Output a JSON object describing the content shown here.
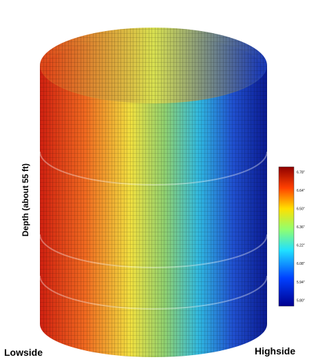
{
  "labels": {
    "depth": "Depth (about 55 ft)",
    "left": "Lowside",
    "right": "Highside"
  },
  "colorbar": {
    "ticks": [
      "6.78\"",
      "6.64\"",
      "6.50\"",
      "6.36\"",
      "6.22\"",
      "6.08\"",
      "5.94\"",
      "5.80\""
    ]
  }
}
